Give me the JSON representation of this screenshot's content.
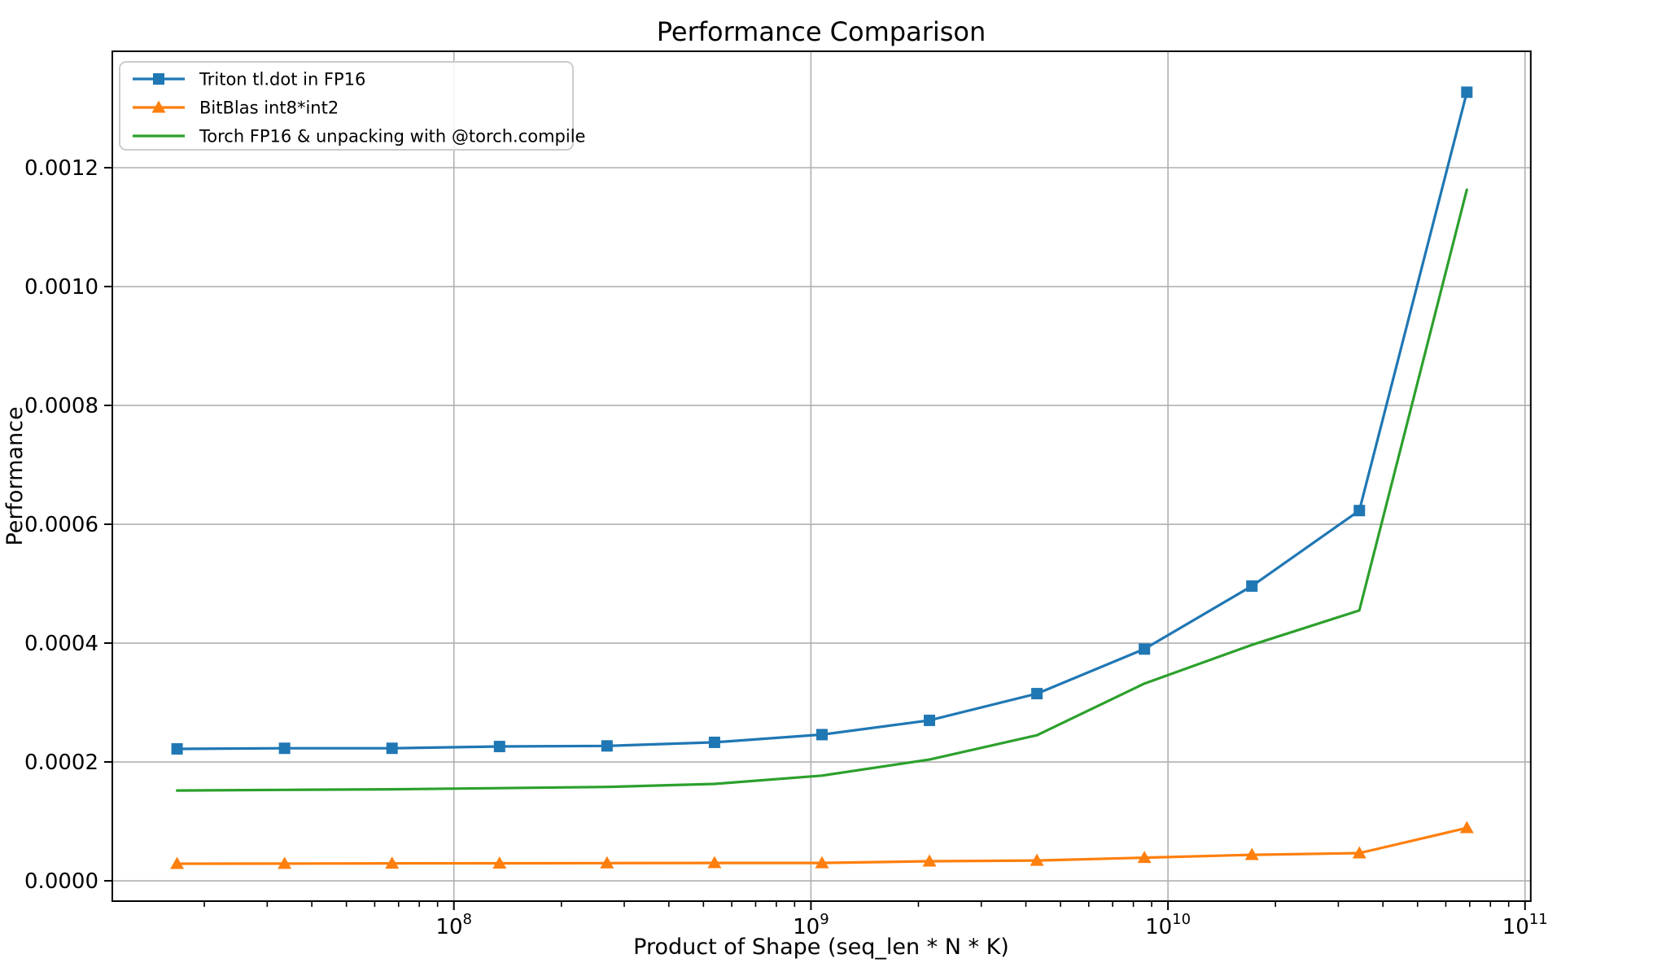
{
  "title": "Performance Comparison",
  "chart_data": {
    "type": "line",
    "title": "Performance Comparison",
    "xlabel": "Product of Shape (seq_len * N * K)",
    "ylabel": "Performance",
    "x_scale": "log10",
    "xlim_log10": [
      7.0433,
      11.016
    ],
    "ylim": [
      -3.42e-05,
      0.0013959
    ],
    "grid": true,
    "grid_color": "#b0b0b0",
    "legend_position": "upper-left",
    "x_major_ticks": [
      100000000,
      1000000000,
      10000000000,
      100000000000
    ],
    "x_major_tick_labels": [
      "10^8",
      "10^9",
      "10^10",
      "10^11"
    ],
    "y_ticks": [
      0.0,
      0.0002,
      0.0004,
      0.0006,
      0.0008,
      0.001,
      0.0012
    ],
    "x": [
      16777216,
      33554432,
      67108864,
      134217728,
      268435456,
      536870912,
      1073741824,
      2147483648,
      4294967296,
      8589934592,
      17179869184,
      34359738368,
      68719476736
    ],
    "series": [
      {
        "name": "Triton tl.dot in FP16",
        "color": "#1f77b4",
        "marker": "square",
        "values": [
          0.000222,
          0.000223,
          0.000223,
          0.000226,
          0.000227,
          0.000233,
          0.000246,
          0.00027,
          0.000315,
          0.00039,
          0.000496,
          0.000623,
          0.001327
        ]
      },
      {
        "name": "BitBlas int8*int2",
        "color": "#ff7f0e",
        "marker": "triangle",
        "values": [
          2.88e-05,
          2.9e-05,
          2.93e-05,
          2.95e-05,
          2.98e-05,
          3.01e-05,
          3e-05,
          3.29e-05,
          3.42e-05,
          3.9e-05,
          4.38e-05,
          4.66e-05,
          8.9e-05
        ]
      },
      {
        "name": "Torch FP16 & unpacking with @torch.compile",
        "color": "#2ca02c",
        "marker": "none",
        "values": [
          0.000152,
          0.000153,
          0.000154,
          0.000156,
          0.000158,
          0.000163,
          0.000177,
          0.000204,
          0.000245,
          0.000332,
          0.000397,
          0.000455,
          0.001163
        ]
      }
    ]
  }
}
